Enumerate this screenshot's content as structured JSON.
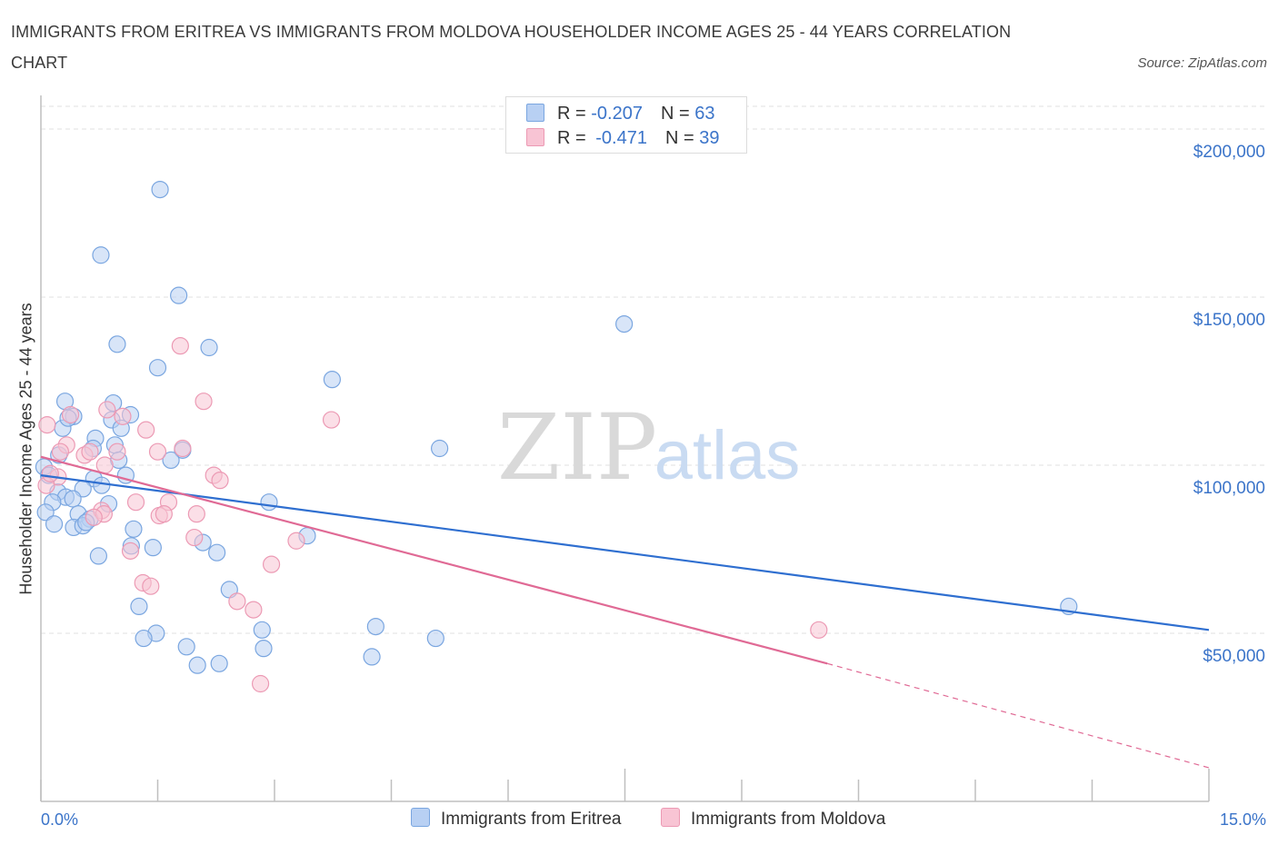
{
  "title": "IMMIGRANTS FROM ERITREA VS IMMIGRANTS FROM MOLDOVA HOUSEHOLDER INCOME AGES 25 - 44 YEARS CORRELATION CHART",
  "source": "Source: ZipAtlas.com",
  "watermark": {
    "zip": "ZIP",
    "atlas": "atlas"
  },
  "legend": {
    "rows": [
      {
        "r_label": "R = ",
        "r_value": "-0.207",
        "n_label": "N = ",
        "n_value": "63"
      },
      {
        "r_label": "R = ",
        "r_value": "-0.471",
        "n_label": "N = ",
        "n_value": "39"
      }
    ]
  },
  "colors": {
    "eritrea_fill": "#b8d0f3",
    "eritrea_stroke": "#7aa6e0",
    "eritrea_line": "#2f6fd0",
    "moldova_fill": "#f8c4d4",
    "moldova_stroke": "#ec9ab4",
    "moldova_line": "#e06a95",
    "tick_label": "#3b74c9",
    "grid": "#e2e2e2"
  },
  "chart_data": {
    "type": "scatter",
    "title": "IMMIGRANTS FROM ERITREA VS IMMIGRANTS FROM MOLDOVA HOUSEHOLDER INCOME AGES 25 - 44 YEARS CORRELATION CHART",
    "xlabel": "",
    "ylabel": "Householder Income Ages 25 - 44 years",
    "xlim": [
      0,
      15
    ],
    "ylim": [
      0,
      210000
    ],
    "x_tick_labels": [
      "0.0%",
      "15.0%"
    ],
    "y_ticks": [
      50000,
      100000,
      150000,
      200000
    ],
    "y_tick_labels": [
      "$50,000",
      "$100,000",
      "$150,000",
      "$200,000"
    ],
    "grid": true,
    "legend_position": "top-center",
    "series": [
      {
        "name": "Immigrants from Eritrea",
        "points": [
          [
            1.53,
            182000
          ],
          [
            0.77,
            162500
          ],
          [
            1.77,
            150500
          ],
          [
            0.98,
            136000
          ],
          [
            1.5,
            129000
          ],
          [
            2.16,
            135000
          ],
          [
            7.49,
            142000
          ],
          [
            3.74,
            125500
          ],
          [
            0.31,
            119000
          ],
          [
            0.93,
            118500
          ],
          [
            0.42,
            114500
          ],
          [
            1.15,
            115000
          ],
          [
            0.91,
            113500
          ],
          [
            0.28,
            111000
          ],
          [
            1.03,
            111000
          ],
          [
            5.12,
            105000
          ],
          [
            1.82,
            104500
          ],
          [
            0.7,
            108000
          ],
          [
            0.95,
            106000
          ],
          [
            0.23,
            103000
          ],
          [
            0.67,
            105000
          ],
          [
            1.67,
            101500
          ],
          [
            1.0,
            101500
          ],
          [
            0.04,
            99500
          ],
          [
            1.09,
            97000
          ],
          [
            0.68,
            96000
          ],
          [
            0.54,
            93000
          ],
          [
            0.22,
            92000
          ],
          [
            0.32,
            90500
          ],
          [
            0.41,
            90000
          ],
          [
            0.15,
            89000
          ],
          [
            2.93,
            89000
          ],
          [
            0.87,
            88500
          ],
          [
            0.06,
            86000
          ],
          [
            0.48,
            85500
          ],
          [
            0.63,
            84000
          ],
          [
            0.17,
            82500
          ],
          [
            0.42,
            81500
          ],
          [
            0.54,
            82000
          ],
          [
            0.58,
            83000
          ],
          [
            1.19,
            81000
          ],
          [
            3.42,
            79000
          ],
          [
            2.08,
            77000
          ],
          [
            1.16,
            76000
          ],
          [
            1.44,
            75500
          ],
          [
            0.74,
            73000
          ],
          [
            2.26,
            74000
          ],
          [
            2.42,
            63000
          ],
          [
            1.26,
            58000
          ],
          [
            4.3,
            52000
          ],
          [
            2.84,
            51000
          ],
          [
            1.48,
            50000
          ],
          [
            1.32,
            48500
          ],
          [
            5.07,
            48500
          ],
          [
            1.87,
            46000
          ],
          [
            2.86,
            45500
          ],
          [
            4.25,
            43000
          ],
          [
            2.01,
            40500
          ],
          [
            2.29,
            41000
          ],
          [
            13.2,
            58000
          ],
          [
            0.1,
            97000
          ],
          [
            0.78,
            94000
          ],
          [
            0.35,
            114000
          ]
        ]
      },
      {
        "name": "Immigrants from Moldova",
        "points": [
          [
            0.08,
            112000
          ],
          [
            0.38,
            115000
          ],
          [
            0.33,
            106000
          ],
          [
            0.25,
            104000
          ],
          [
            0.56,
            103000
          ],
          [
            0.98,
            104000
          ],
          [
            0.22,
            96500
          ],
          [
            0.07,
            94000
          ],
          [
            0.12,
            97500
          ],
          [
            0.85,
            116500
          ],
          [
            1.05,
            114500
          ],
          [
            1.35,
            110500
          ],
          [
            1.79,
            135500
          ],
          [
            2.09,
            119000
          ],
          [
            3.73,
            113500
          ],
          [
            1.5,
            104000
          ],
          [
            1.82,
            105000
          ],
          [
            2.22,
            97000
          ],
          [
            2.3,
            95500
          ],
          [
            0.82,
            100000
          ],
          [
            0.63,
            104000
          ],
          [
            0.78,
            86500
          ],
          [
            0.81,
            85500
          ],
          [
            1.22,
            89000
          ],
          [
            1.64,
            89000
          ],
          [
            1.52,
            85000
          ],
          [
            1.58,
            85500
          ],
          [
            2.0,
            85500
          ],
          [
            1.97,
            78500
          ],
          [
            0.68,
            84500
          ],
          [
            1.15,
            74500
          ],
          [
            1.31,
            65000
          ],
          [
            1.41,
            64000
          ],
          [
            3.28,
            77500
          ],
          [
            2.96,
            70500
          ],
          [
            2.52,
            59500
          ],
          [
            2.73,
            57000
          ],
          [
            9.99,
            51000
          ],
          [
            2.82,
            35000
          ]
        ]
      }
    ],
    "trendlines": [
      {
        "series": "Immigrants from Eritrea",
        "x": [
          0,
          15
        ],
        "y": [
          97000,
          51000
        ]
      },
      {
        "series": "Immigrants from Moldova",
        "x": [
          0,
          10.1
        ],
        "y": [
          102500,
          41000
        ],
        "dashed_extension": {
          "x": [
            10.1,
            15
          ],
          "y": [
            41000,
            10000
          ]
        }
      }
    ]
  },
  "bottom_legend": {
    "eritrea": "Immigrants from Eritrea",
    "moldova": "Immigrants from Moldova"
  }
}
